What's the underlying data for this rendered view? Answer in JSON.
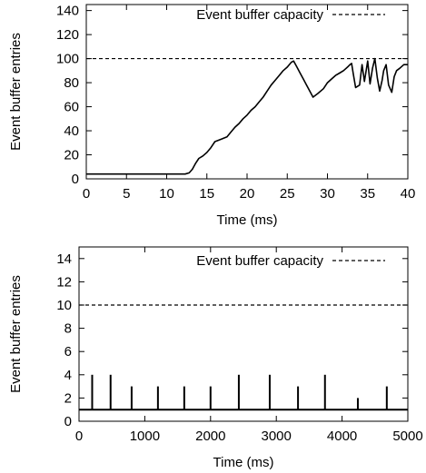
{
  "chart_data": [
    {
      "type": "line",
      "xlabel": "Time (ms)",
      "ylabel": "Event buffer entries",
      "xlim": [
        0,
        40
      ],
      "ylim": [
        0,
        145
      ],
      "xticks": [
        0,
        5,
        10,
        15,
        20,
        25,
        30,
        35,
        40
      ],
      "yticks": [
        0,
        20,
        40,
        60,
        80,
        100,
        120,
        140
      ],
      "grid": false,
      "legend_position": "top-right",
      "capacity": 100,
      "series": [
        {
          "name": "Event buffer capacity",
          "style": "dashed",
          "x": [
            0,
            40
          ],
          "y": [
            100,
            100
          ]
        },
        {
          "style": "solid",
          "x": [
            0,
            12.3,
            12.8,
            13.2,
            13.6,
            14.0,
            14.5,
            15.0,
            15.5,
            16.0,
            16.8,
            17.5,
            18.0,
            18.5,
            19.0,
            19.5,
            20.0,
            20.5,
            21.0,
            21.5,
            22.0,
            22.5,
            23.0,
            23.5,
            24.0,
            24.5,
            25.0,
            25.5,
            25.8,
            26.2,
            26.6,
            27.0,
            27.4,
            27.8,
            28.2,
            28.8,
            29.5,
            30.0,
            30.5,
            31.0,
            31.5,
            32.0,
            32.5,
            32.8,
            33.0,
            33.2,
            33.5,
            34.0,
            34.3,
            34.6,
            35.0,
            35.3,
            35.6,
            35.9,
            36.2,
            36.5,
            36.8,
            37.0,
            37.3,
            37.6,
            38.0,
            38.3,
            38.6,
            39.0,
            39.5,
            40.0
          ],
          "y": [
            4,
            4,
            5,
            8,
            13,
            17,
            19,
            22,
            26,
            31,
            33,
            35,
            39,
            43,
            46,
            50,
            53,
            57,
            60,
            64,
            68,
            73,
            78,
            82,
            86,
            90,
            93,
            97,
            98,
            93,
            88,
            83,
            78,
            73,
            68,
            71,
            75,
            80,
            83,
            86,
            88,
            90,
            93,
            95,
            96,
            88,
            76,
            78,
            95,
            81,
            98,
            79,
            92,
            100,
            84,
            73,
            82,
            90,
            95,
            78,
            72,
            85,
            90,
            92,
            95,
            95
          ]
        }
      ]
    },
    {
      "type": "bar",
      "xlabel": "Time (ms)",
      "ylabel": "Event buffer entries",
      "xlim": [
        0,
        5000
      ],
      "ylim": [
        0,
        15
      ],
      "xticks": [
        0,
        1000,
        2000,
        3000,
        4000,
        5000
      ],
      "yticks": [
        0,
        2,
        4,
        6,
        8,
        10,
        12,
        14
      ],
      "grid": false,
      "legend_position": "top-right",
      "capacity": 10,
      "baseline": 1,
      "series": [
        {
          "name": "Event buffer capacity",
          "style": "dashed",
          "x": [
            0,
            5000
          ],
          "y": [
            10,
            10
          ]
        },
        {
          "style": "impulses",
          "x": [
            200,
            480,
            800,
            1200,
            1600,
            2000,
            2430,
            2900,
            3330,
            3740,
            4240,
            4680
          ],
          "y": [
            4,
            4,
            3,
            3,
            3,
            3,
            4,
            4,
            3,
            4,
            2,
            3
          ]
        }
      ]
    }
  ]
}
